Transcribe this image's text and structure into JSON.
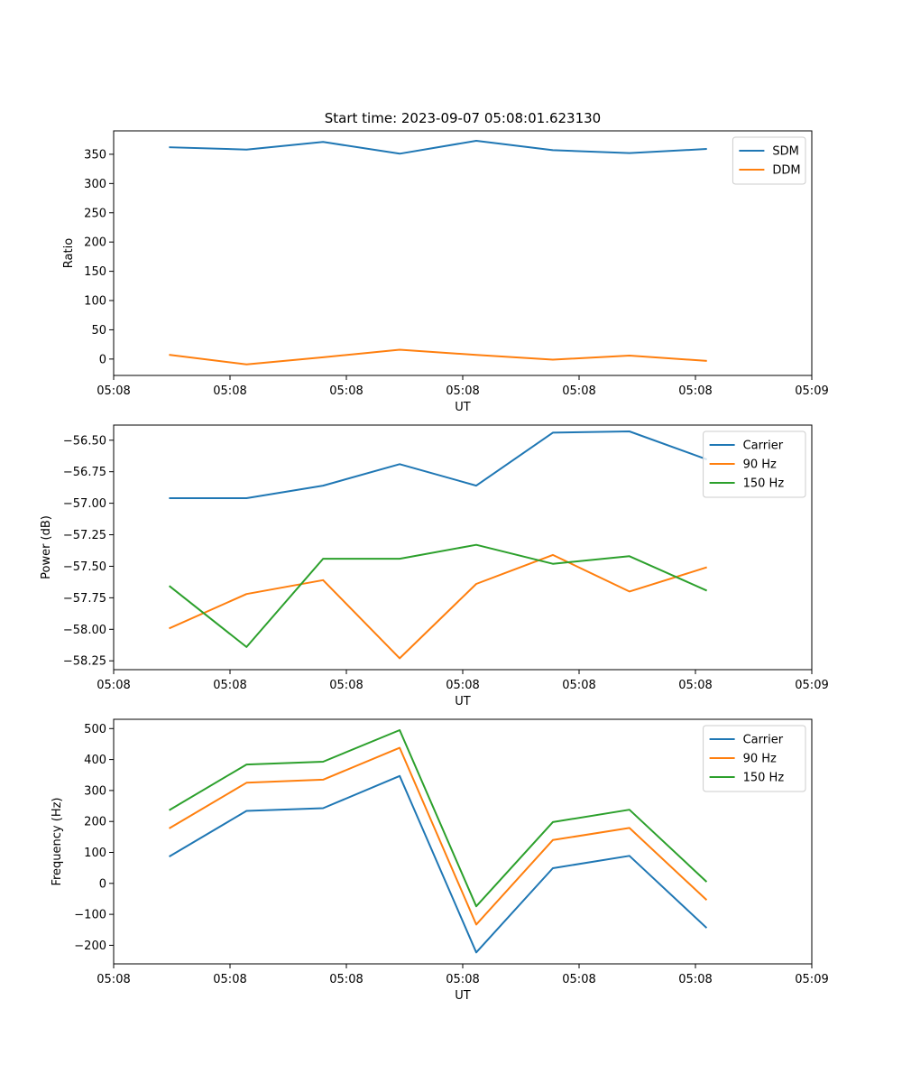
{
  "title": "Start time: 2023-09-07 05:08:01.623130",
  "chart_data": [
    {
      "type": "line",
      "xlabel": "UT",
      "ylabel": "Ratio",
      "xlim": [
        0,
        9.3
      ],
      "ylim": [
        -28,
        390
      ],
      "x_ticks": [
        {
          "value": 0.0,
          "label": "05:08"
        },
        {
          "value": 1.55,
          "label": "05:08"
        },
        {
          "value": 3.1,
          "label": "05:08"
        },
        {
          "value": 4.65,
          "label": "05:08"
        },
        {
          "value": 6.2,
          "label": "05:08"
        },
        {
          "value": 7.75,
          "label": "05:08"
        },
        {
          "value": 9.3,
          "label": "05:09"
        }
      ],
      "y_ticks": [
        {
          "value": 0,
          "label": "0"
        },
        {
          "value": 50,
          "label": "50"
        },
        {
          "value": 100,
          "label": "100"
        },
        {
          "value": 150,
          "label": "150"
        },
        {
          "value": 200,
          "label": "200"
        },
        {
          "value": 250,
          "label": "250"
        },
        {
          "value": 300,
          "label": "300"
        },
        {
          "value": 350,
          "label": "350"
        }
      ],
      "x": [
        0.75,
        1.77,
        2.79,
        3.81,
        4.83,
        5.85,
        6.87,
        7.89
      ],
      "series": [
        {
          "name": "SDM",
          "color": "#1f77b4",
          "values": [
            362,
            358,
            371,
            351,
            373,
            357,
            352,
            359
          ]
        },
        {
          "name": "DDM",
          "color": "#ff7f0e",
          "values": [
            7,
            -9,
            3,
            16,
            7,
            -1,
            6,
            -3
          ]
        }
      ],
      "legend": "top-right"
    },
    {
      "type": "line",
      "xlabel": "UT",
      "ylabel": "Power (dB)",
      "xlim": [
        0,
        9.3
      ],
      "ylim": [
        -58.32,
        -56.38
      ],
      "x_ticks": [
        {
          "value": 0.0,
          "label": "05:08"
        },
        {
          "value": 1.55,
          "label": "05:08"
        },
        {
          "value": 3.1,
          "label": "05:08"
        },
        {
          "value": 4.65,
          "label": "05:08"
        },
        {
          "value": 6.2,
          "label": "05:08"
        },
        {
          "value": 7.75,
          "label": "05:08"
        },
        {
          "value": 9.3,
          "label": "05:09"
        }
      ],
      "y_ticks": [
        {
          "value": -58.25,
          "label": "−58.25"
        },
        {
          "value": -58.0,
          "label": "−58.00"
        },
        {
          "value": -57.75,
          "label": "−57.75"
        },
        {
          "value": -57.5,
          "label": "−57.50"
        },
        {
          "value": -57.25,
          "label": "−57.25"
        },
        {
          "value": -57.0,
          "label": "−57.00"
        },
        {
          "value": -56.75,
          "label": "−56.75"
        },
        {
          "value": -56.5,
          "label": "−56.50"
        }
      ],
      "x": [
        0.75,
        1.77,
        2.79,
        3.81,
        4.83,
        5.85,
        6.87,
        7.89
      ],
      "series": [
        {
          "name": "Carrier",
          "color": "#1f77b4",
          "values": [
            -56.96,
            -56.96,
            -56.86,
            -56.69,
            -56.86,
            -56.44,
            -56.43,
            -56.65
          ]
        },
        {
          "name": "90 Hz",
          "color": "#ff7f0e",
          "values": [
            -57.99,
            -57.72,
            -57.61,
            -58.23,
            -57.64,
            -57.41,
            -57.7,
            -57.51
          ]
        },
        {
          "name": "150 Hz",
          "color": "#2ca02c",
          "values": [
            -57.66,
            -58.14,
            -57.44,
            -57.44,
            -57.33,
            -57.48,
            -57.42,
            -57.69
          ]
        }
      ],
      "legend": "top-right"
    },
    {
      "type": "line",
      "xlabel": "UT",
      "ylabel": "Frequency (Hz)",
      "xlim": [
        0,
        9.3
      ],
      "ylim": [
        -260,
        530
      ],
      "x_ticks": [
        {
          "value": 0.0,
          "label": "05:08"
        },
        {
          "value": 1.55,
          "label": "05:08"
        },
        {
          "value": 3.1,
          "label": "05:08"
        },
        {
          "value": 4.65,
          "label": "05:08"
        },
        {
          "value": 6.2,
          "label": "05:08"
        },
        {
          "value": 7.75,
          "label": "05:08"
        },
        {
          "value": 9.3,
          "label": "05:09"
        }
      ],
      "y_ticks": [
        {
          "value": -200,
          "label": "−200"
        },
        {
          "value": -100,
          "label": "−100"
        },
        {
          "value": 0,
          "label": "0"
        },
        {
          "value": 100,
          "label": "100"
        },
        {
          "value": 200,
          "label": "200"
        },
        {
          "value": 300,
          "label": "300"
        },
        {
          "value": 400,
          "label": "400"
        },
        {
          "value": 500,
          "label": "500"
        }
      ],
      "x": [
        0.75,
        1.77,
        2.79,
        3.81,
        4.83,
        5.85,
        6.87,
        7.89
      ],
      "series": [
        {
          "name": "Carrier",
          "color": "#1f77b4",
          "values": [
            88,
            234,
            243,
            347,
            -223,
            49,
            89,
            -142
          ]
        },
        {
          "name": "90 Hz",
          "color": "#ff7f0e",
          "values": [
            179,
            325,
            335,
            438,
            -133,
            140,
            179,
            -52
          ]
        },
        {
          "name": "150 Hz",
          "color": "#2ca02c",
          "values": [
            238,
            384,
            393,
            495,
            -74,
            198,
            238,
            7
          ]
        }
      ],
      "legend": "top-right"
    }
  ]
}
